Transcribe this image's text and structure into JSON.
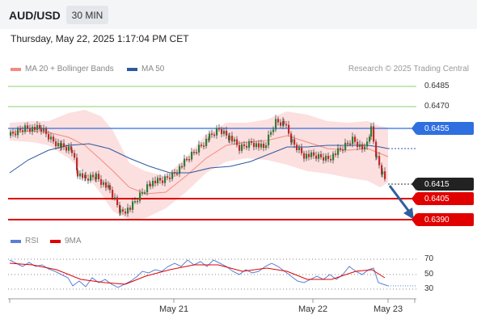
{
  "header": {
    "symbol": "AUD/USD",
    "timeframe": "30 MIN"
  },
  "timestamp": "Thursday, May 22, 2025 1:17:04 PM CET",
  "legend": {
    "main": [
      {
        "label": "MA 20 + Bollinger Bands",
        "color": "#f28b82"
      },
      {
        "label": "MA 50",
        "color": "#2c5aa0"
      }
    ],
    "rsi": [
      {
        "label": "RSI",
        "color": "#5b7fd6"
      },
      {
        "label": "9MA",
        "color": "#e00000"
      }
    ]
  },
  "credit": "Research © 2025 Trading Central",
  "levels": {
    "resistance_2": "0.6485",
    "resistance_1": "0.6470",
    "pivot": "0.6455",
    "last_price": "0.6415",
    "support_1": "0.6405",
    "support_2": "0.6390"
  },
  "rsi_axis": [
    "70",
    "50",
    "30"
  ],
  "dates": [
    "May 21",
    "May 22",
    "May 23"
  ],
  "colors": {
    "bull": "#2e7d32",
    "bear": "#c62828",
    "pivot": "#2f6fe0",
    "support": "#e00000",
    "resistance": "#8ccf6e",
    "band": "#fbd4d4"
  }
}
